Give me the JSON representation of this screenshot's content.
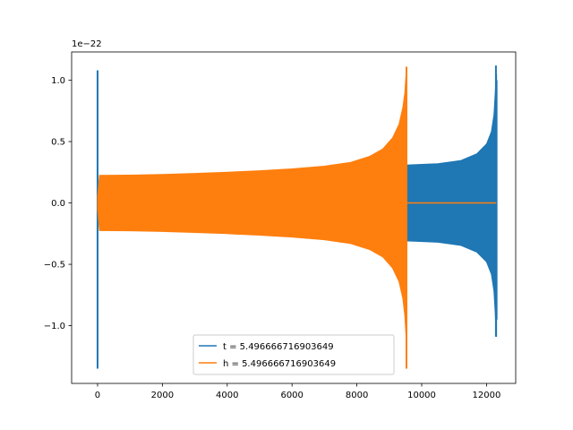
{
  "chart_data": {
    "type": "line",
    "title": "",
    "xlabel": "",
    "ylabel": "",
    "y_offset_label": "1e−22",
    "xlim": [
      -800,
      12900
    ],
    "ylim": [
      -1.47,
      1.23
    ],
    "x_ticks": [
      0,
      2000,
      4000,
      6000,
      8000,
      10000,
      12000
    ],
    "x_tick_labels": [
      "0",
      "2000",
      "4000",
      "6000",
      "8000",
      "10000",
      "12000"
    ],
    "y_ticks": [
      -1.0,
      -0.5,
      0.0,
      0.5,
      1.0
    ],
    "y_tick_labels": [
      "−1.0",
      "−0.5",
      "0.0",
      "0.5",
      "1.0"
    ],
    "grid": false,
    "legend_position": "lower center",
    "series": [
      {
        "name": "t = 5.496666716903649",
        "color": "#1f77b4",
        "envelope": {
          "x": [
            0,
            100,
            1000,
            3000,
            5000,
            7000,
            8500,
            9200,
            9535,
            9600,
            10500,
            11200,
            11700,
            12000,
            12150,
            12230,
            12270,
            12290,
            12310
          ],
          "upper": [
            0.05,
            0.22,
            0.2256,
            0.2263,
            0.2268,
            0.2273,
            0.2277,
            0.2279,
            0.31,
            0.31,
            0.32,
            0.345,
            0.4,
            0.48,
            0.58,
            0.72,
            0.9,
            1.02,
            1.05
          ],
          "lower": [
            -0.05,
            -0.22,
            -0.2256,
            -0.2263,
            -0.2268,
            -0.2273,
            -0.2277,
            -0.2279,
            -0.31,
            -0.31,
            -0.32,
            -0.345,
            -0.4,
            -0.48,
            -0.58,
            -0.72,
            -0.9,
            -1.05,
            -1.09
          ]
        },
        "spikes": [
          {
            "x": 0,
            "ymin": -1.35,
            "ymax": 1.08
          },
          {
            "x": 12290,
            "ymin": -1.09,
            "ymax": 1.12
          },
          {
            "x": 12310,
            "ymin": -0.95,
            "ymax": 1.0
          }
        ]
      },
      {
        "name": "h = 5.496666716903649",
        "color": "#ff7f0e",
        "envelope": {
          "x": [
            0,
            60,
            1000,
            2000,
            3000,
            4000,
            5000,
            6000,
            7000,
            7800,
            8400,
            8800,
            9100,
            9300,
            9420,
            9480,
            9520,
            9540
          ],
          "upper": [
            0.05,
            0.225,
            0.227,
            0.232,
            0.24,
            0.25,
            0.262,
            0.278,
            0.3,
            0.33,
            0.38,
            0.44,
            0.53,
            0.64,
            0.78,
            0.9,
            1.06,
            1.11
          ],
          "lower": [
            -0.05,
            -0.225,
            -0.227,
            -0.232,
            -0.24,
            -0.25,
            -0.262,
            -0.278,
            -0.3,
            -0.33,
            -0.38,
            -0.44,
            -0.53,
            -0.64,
            -0.78,
            -0.92,
            -1.1,
            -1.35
          ]
        },
        "flat_tail": {
          "x": [
            9545,
            12300
          ],
          "y": 0.0
        },
        "spikes": [
          {
            "x": 9530,
            "ymin": -1.35,
            "ymax": 1.11
          }
        ]
      }
    ]
  }
}
